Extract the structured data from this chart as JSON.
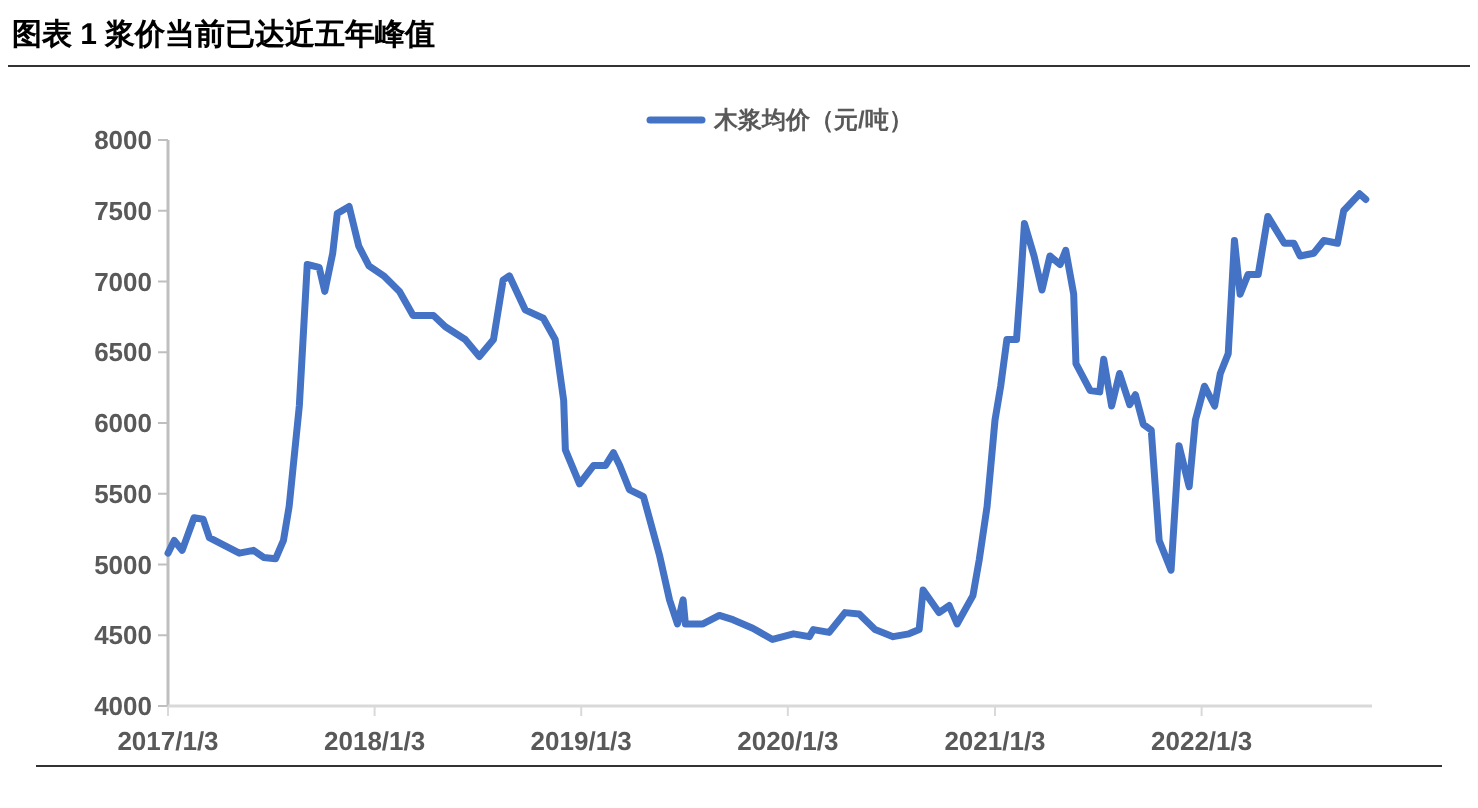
{
  "chart_data": {
    "type": "line",
    "title": "图表 1 浆价当前已达近五年峰值",
    "x": [
      "2017-01-03",
      "2017-01-14",
      "2017-01-28",
      "2017-02-18",
      "2017-03-06",
      "2017-03-17",
      "2017-05-09",
      "2017-06-03",
      "2017-06-21",
      "2017-07-12",
      "2017-07-26",
      "2017-08-05",
      "2017-08-23",
      "2017-09-06",
      "2017-09-27",
      "2017-10-07",
      "2017-10-21",
      "2017-10-29",
      "2017-11-19",
      "2017-12-06",
      "2017-12-24",
      "2018-01-19",
      "2018-02-16",
      "2018-03-12",
      "2018-04-17",
      "2018-05-08",
      "2018-06-12",
      "2018-07-07",
      "2018-08-01",
      "2018-08-18",
      "2018-08-29",
      "2018-09-26",
      "2018-10-28",
      "2018-11-18",
      "2018-12-03",
      "2018-12-06",
      "2018-12-31",
      "2019-01-25",
      "2019-02-15",
      "2019-03-01",
      "2019-03-12",
      "2019-03-29",
      "2019-04-23",
      "2019-05-21",
      "2019-06-08",
      "2019-06-22",
      "2019-07-02",
      "2019-07-06",
      "2019-08-06",
      "2019-09-04",
      "2019-09-28",
      "2019-11-02",
      "2019-12-07",
      "2020-01-13",
      "2020-02-10",
      "2020-02-17",
      "2020-03-16",
      "2020-04-13",
      "2020-05-08",
      "2020-06-05",
      "2020-07-07",
      "2020-08-04",
      "2020-08-22",
      "2020-08-29",
      "2020-09-26",
      "2020-10-14",
      "2020-10-28",
      "2020-11-25",
      "2020-12-06",
      "2020-12-20",
      "2021-01-03",
      "2021-01-13",
      "2021-01-24",
      "2021-02-10",
      "2021-02-17",
      "2021-02-24",
      "2021-03-13",
      "2021-03-27",
      "2021-04-10",
      "2021-04-28",
      "2021-05-08",
      "2021-05-22",
      "2021-05-26",
      "2021-06-20",
      "2021-07-07",
      "2021-07-14",
      "2021-07-28",
      "2021-08-11",
      "2021-08-29",
      "2021-09-08",
      "2021-09-22",
      "2021-10-06",
      "2021-10-20",
      "2021-11-10",
      "2021-11-24",
      "2021-12-12",
      "2021-12-23",
      "2022-01-08",
      "2022-01-26",
      "2022-02-05",
      "2022-02-19",
      "2022-03-02",
      "2022-03-12",
      "2022-03-26",
      "2022-04-13",
      "2022-04-30",
      "2022-05-29",
      "2022-06-15",
      "2022-06-26",
      "2022-07-20",
      "2022-08-07",
      "2022-08-31",
      "2022-09-11",
      "2022-10-09",
      "2022-10-20"
    ],
    "series": [
      {
        "name": "木浆均价（元/吨）",
        "color": "#4472c4",
        "values": [
          5080,
          5170,
          5100,
          5330,
          5320,
          5190,
          5080,
          5100,
          5050,
          5040,
          5170,
          5410,
          6120,
          7120,
          7100,
          6930,
          7200,
          7480,
          7530,
          7250,
          7110,
          7040,
          6930,
          6760,
          6760,
          6680,
          6590,
          6470,
          6590,
          7010,
          7040,
          6800,
          6740,
          6590,
          6160,
          5810,
          5570,
          5700,
          5700,
          5790,
          5700,
          5530,
          5480,
          5070,
          4750,
          4580,
          4750,
          4580,
          4580,
          4640,
          4610,
          4550,
          4470,
          4510,
          4490,
          4540,
          4520,
          4660,
          4650,
          4540,
          4490,
          4510,
          4540,
          4820,
          4660,
          4710,
          4580,
          4780,
          5030,
          5410,
          6020,
          6260,
          6590,
          6590,
          6970,
          7410,
          7180,
          6940,
          7180,
          7120,
          7220,
          6910,
          6420,
          6230,
          6220,
          6450,
          6120,
          6350,
          6130,
          6200,
          5990,
          5950,
          5170,
          4960,
          5840,
          5550,
          6020,
          6260,
          6120,
          6350,
          6490,
          7290,
          6910,
          7050,
          7050,
          7460,
          7270,
          7270,
          7180,
          7200,
          7290,
          7270,
          7500,
          7620,
          7580
        ]
      }
    ],
    "xlim": [
      "2017-01-03",
      "2022-10-31"
    ],
    "xticks": [
      {
        "value": "2017-01-03",
        "label": "2017/1/3"
      },
      {
        "value": "2018-01-03",
        "label": "2018/1/3"
      },
      {
        "value": "2019-01-03",
        "label": "2019/1/3"
      },
      {
        "value": "2020-01-03",
        "label": "2020/1/3"
      },
      {
        "value": "2021-01-03",
        "label": "2021/1/3"
      },
      {
        "value": "2022-01-03",
        "label": "2022/1/3"
      }
    ],
    "ylim": [
      4000,
      8000
    ],
    "yticks": [
      4000,
      4500,
      5000,
      5500,
      6000,
      6500,
      7000,
      7500,
      8000
    ],
    "legend": "top",
    "grid": false,
    "marker": "none",
    "line_style": "solid"
  }
}
